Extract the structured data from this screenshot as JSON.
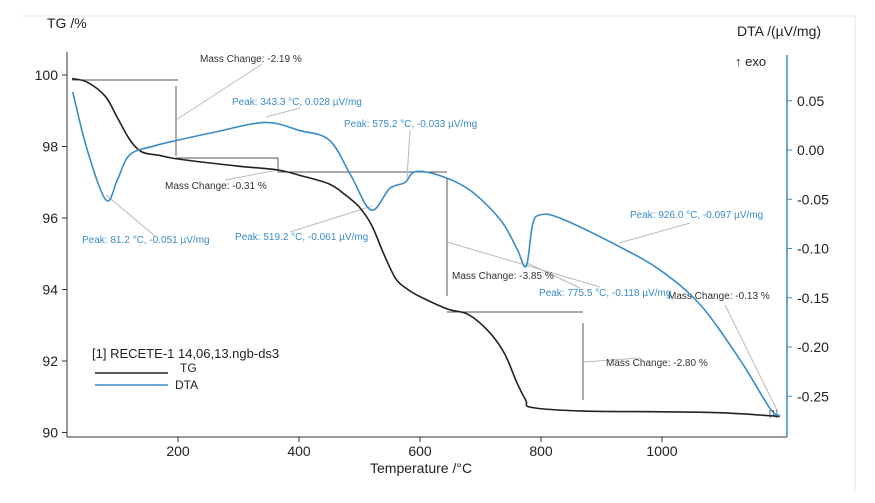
{
  "chart_data": {
    "type": "line",
    "xlabel": "Temperature /°C",
    "ylabel": "TG /%",
    "y2label": "DTA /(µV/mg)",
    "exo_label": "↑ exo",
    "xlim": [
      15,
      1205
    ],
    "ylim": [
      89.95,
      100.6
    ],
    "y2lim": [
      -0.288,
      0.09
    ],
    "xticks": [
      "200",
      "400",
      "600",
      "800",
      "1000"
    ],
    "yticks": [
      "100",
      "98",
      "96",
      "94",
      "92",
      "90"
    ],
    "y2ticks": [
      "0.05",
      "0.00",
      "-0.05",
      "-0.10",
      "-0.15",
      "-0.20",
      "-0.25"
    ],
    "legend": {
      "file": "[1] RECETE-1 14,06,13.ngb-ds3",
      "placement": "bottom-left"
    },
    "series": [
      {
        "name": "TG",
        "axis": "left",
        "color": "#222222",
        "x": [
          25,
          50,
          80,
          100,
          120,
          140,
          170,
          200,
          300,
          363,
          400,
          450,
          480,
          500,
          520,
          540,
          560,
          580,
          600,
          646,
          680,
          715,
          740,
          760,
          775,
          785,
          870,
          1000,
          1100,
          1195
        ],
        "y": [
          99.9,
          99.8,
          99.4,
          98.8,
          98.2,
          97.85,
          97.75,
          97.65,
          97.45,
          97.35,
          97.2,
          96.95,
          96.6,
          96.3,
          95.8,
          95.0,
          94.3,
          94.0,
          93.8,
          93.45,
          93.3,
          92.8,
          92.2,
          91.4,
          90.9,
          90.7,
          90.6,
          90.58,
          90.55,
          90.45
        ]
      },
      {
        "name": "DTA",
        "axis": "right",
        "color": "#3a8cc8",
        "x": [
          26,
          50,
          81.2,
          100,
          120,
          160,
          200,
          260,
          343.3,
          400,
          450,
          485,
          519.2,
          550,
          575.2,
          592,
          633,
          683,
          733,
          760,
          775.5,
          786,
          798,
          831,
          926,
          997,
          1063,
          1129,
          1178,
          1195
        ],
        "y": [
          0.059,
          0.0,
          -0.051,
          -0.03,
          -0.005,
          0.004,
          0.01,
          0.018,
          0.028,
          0.02,
          0.01,
          -0.025,
          -0.061,
          -0.039,
          -0.033,
          -0.022,
          -0.026,
          -0.041,
          -0.071,
          -0.1,
          -0.118,
          -0.076,
          -0.066,
          -0.069,
          -0.097,
          -0.122,
          -0.157,
          -0.213,
          -0.262,
          -0.27
        ]
      }
    ],
    "annotations": {
      "mc1": "Mass Change: -2.19 %",
      "mc2": "Mass Change: -0.31 %",
      "mc3": "Mass Change: -3.85 %",
      "mc4": "Mass Change: -2.80 %",
      "mc5": "Mass Change: -0.13 %",
      "p1": "Peak: 81.2 °C, -0.051 µV/mg",
      "p2": "Peak: 343.3 °C, 0.028 µV/mg",
      "p3": "Peak: 519.2 °C, -0.061 µV/mg",
      "p4": "Peak: 575.2 °C, -0.033 µV/mg",
      "p5": "Peak: 775.5 °C, -0.118 µV/mg",
      "p6": "Peak: 926.0 °C, -0.097 µV/mg",
      "end_marker": "[1]"
    },
    "grid": false
  }
}
